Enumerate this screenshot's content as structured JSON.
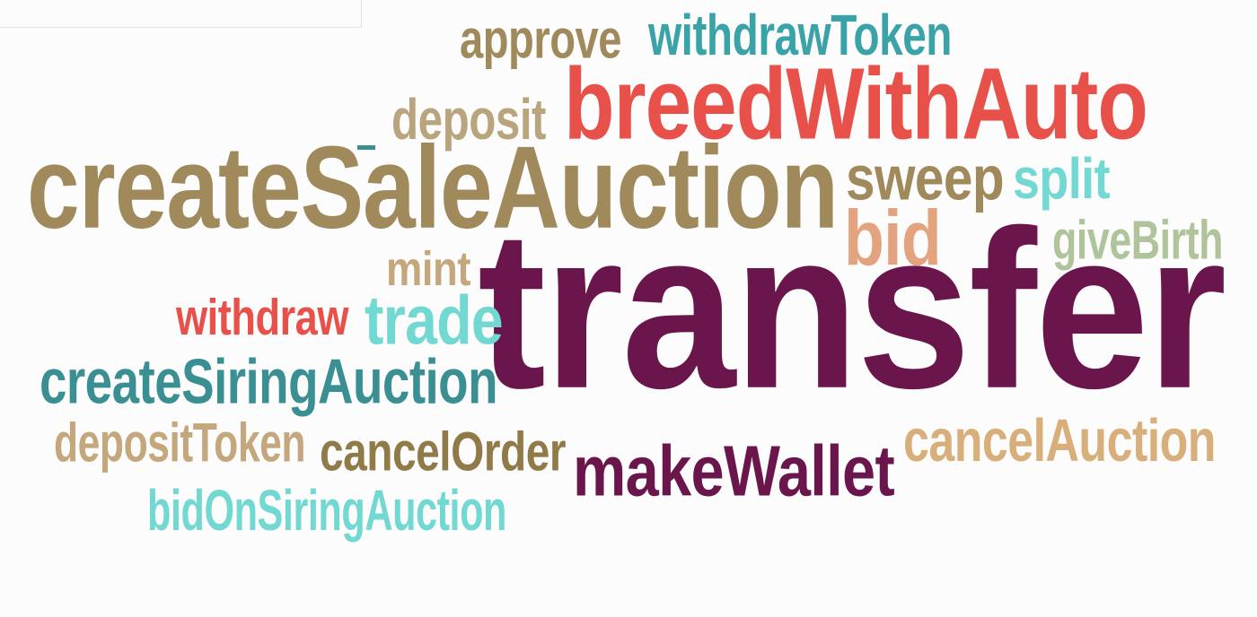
{
  "wordcloud": {
    "words": [
      {
        "key": "transfer",
        "text": "transfer",
        "color": "#6a164c"
      },
      {
        "key": "createSaleAuction",
        "text": "createSaleAuction",
        "color": "#a08a5b"
      },
      {
        "key": "breedWithAuto",
        "text": "breedWithAuto",
        "color": "#e8514a"
      },
      {
        "key": "makeWallet",
        "text": "makeWallet",
        "color": "#6a164c"
      },
      {
        "key": "createSiringAuction",
        "text": "createSiringAuction",
        "color": "#3a8f92"
      },
      {
        "key": "cancelAuction",
        "text": "cancelAuction",
        "color": "#d8ae7a"
      },
      {
        "key": "withdrawToken",
        "text": "withdrawToken",
        "color": "#3aa3a7"
      },
      {
        "key": "approve",
        "text": "approve",
        "color": "#a08a5b"
      },
      {
        "key": "deposit",
        "text": "deposit",
        "color": "#b9a57d"
      },
      {
        "key": "sweep",
        "text": "sweep",
        "color": "#a08a5b"
      },
      {
        "key": "split",
        "text": "split",
        "color": "#72d8d2"
      },
      {
        "key": "bid",
        "text": "bid",
        "color": "#e3a37e"
      },
      {
        "key": "giveBirth",
        "text": "giveBirth",
        "color": "#afc49b"
      },
      {
        "key": "mint",
        "text": "mint",
        "color": "#c4a77c"
      },
      {
        "key": "withdraw",
        "text": "withdraw",
        "color": "#e8514a"
      },
      {
        "key": "trade",
        "text": "trade",
        "color": "#72d8d2"
      },
      {
        "key": "depositToken",
        "text": "depositToken",
        "color": "#c4a77c"
      },
      {
        "key": "cancelOrder",
        "text": "cancelOrder",
        "color": "#8f7a48"
      },
      {
        "key": "bidOnSiringAuction",
        "text": "bidOnSiringAuction",
        "color": "#72d8d2"
      }
    ]
  }
}
